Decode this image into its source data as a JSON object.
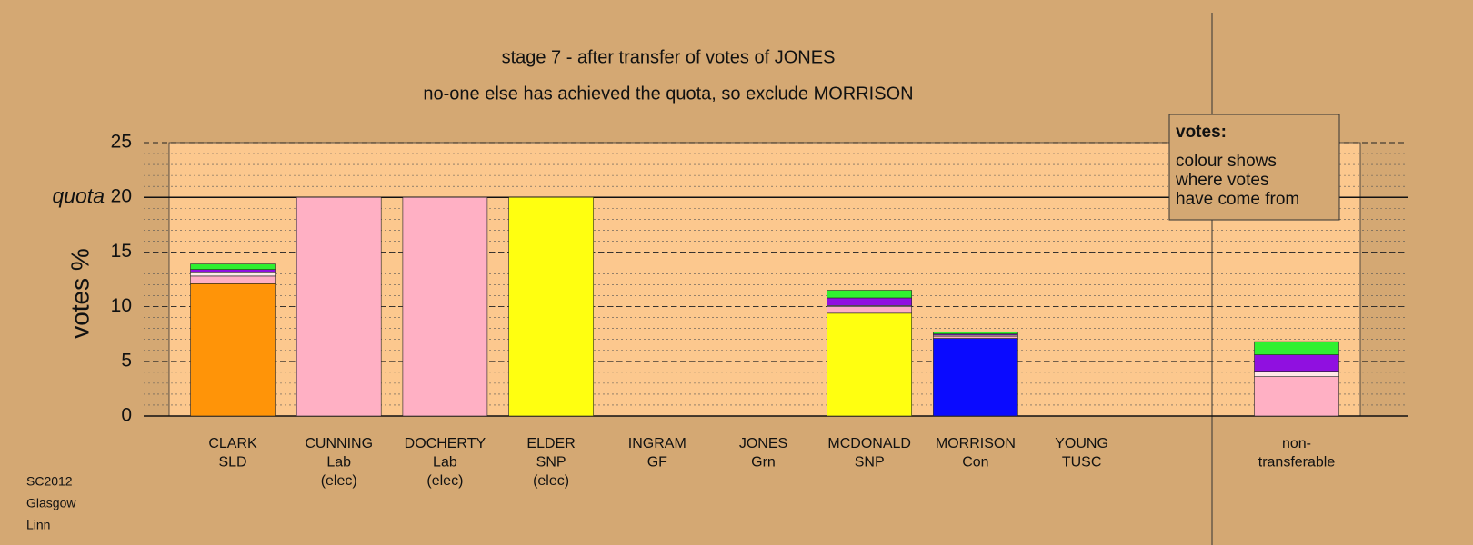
{
  "chart_data": {
    "type": "stacked_bar",
    "title": "stage 7 - after transfer of votes of JONES",
    "subtitle": "no-one else has achieved the quota, so exclude MORRISON",
    "ylabel": "votes %",
    "categories": [
      [
        "CLARK",
        "SLD"
      ],
      [
        "CUNNING",
        "Lab",
        "(elec)"
      ],
      [
        "DOCHERTY",
        "Lab",
        "(elec)"
      ],
      [
        "ELDER",
        "SNP",
        "(elec)"
      ],
      [
        "INGRAM",
        "GF"
      ],
      [
        "JONES",
        "Grn"
      ],
      [
        "MCDONALD",
        "SNP"
      ],
      [
        "MORRISON",
        "Con"
      ],
      [
        "YOUNG",
        "TUSC"
      ],
      [
        "non-",
        "transferable"
      ]
    ],
    "series": [
      {
        "color": "#ff9408",
        "values": [
          12.1,
          0,
          0,
          0,
          0,
          0,
          0,
          0,
          0,
          0
        ]
      },
      {
        "color": "#ffff10",
        "values": [
          0,
          0,
          0,
          20,
          0,
          0,
          9.4,
          0,
          0,
          0
        ]
      },
      {
        "color": "#0a0aff",
        "values": [
          0,
          0,
          0,
          0,
          0,
          0,
          0,
          7.1,
          0,
          0
        ]
      },
      {
        "color": "#ffb0c4",
        "values": [
          0.7,
          20,
          20,
          0,
          0,
          0,
          0.6,
          0.2,
          0,
          3.6
        ]
      },
      {
        "color": "#ffe8e8",
        "values": [
          0.3,
          0,
          0,
          0,
          0,
          0,
          0.1,
          0.1,
          0,
          0.5
        ]
      },
      {
        "color": "#9010e0",
        "values": [
          0.3,
          0,
          0,
          0,
          0,
          0,
          0.7,
          0.1,
          0,
          1.5
        ]
      },
      {
        "color": "#30f030",
        "values": [
          0.5,
          0,
          0,
          0,
          0,
          0,
          0.7,
          0.2,
          0,
          1.2
        ]
      }
    ],
    "ylim": [
      0,
      25
    ],
    "yticks": [
      0,
      5,
      10,
      15,
      20,
      25
    ],
    "minor_grid_step": 1,
    "quota": {
      "label": "quota",
      "value": 20
    },
    "legend": {
      "title": "votes:",
      "lines": [
        "colour shows",
        "where votes",
        "have come from"
      ]
    },
    "footer": [
      "SC2012",
      "Glasgow",
      "Linn"
    ]
  }
}
